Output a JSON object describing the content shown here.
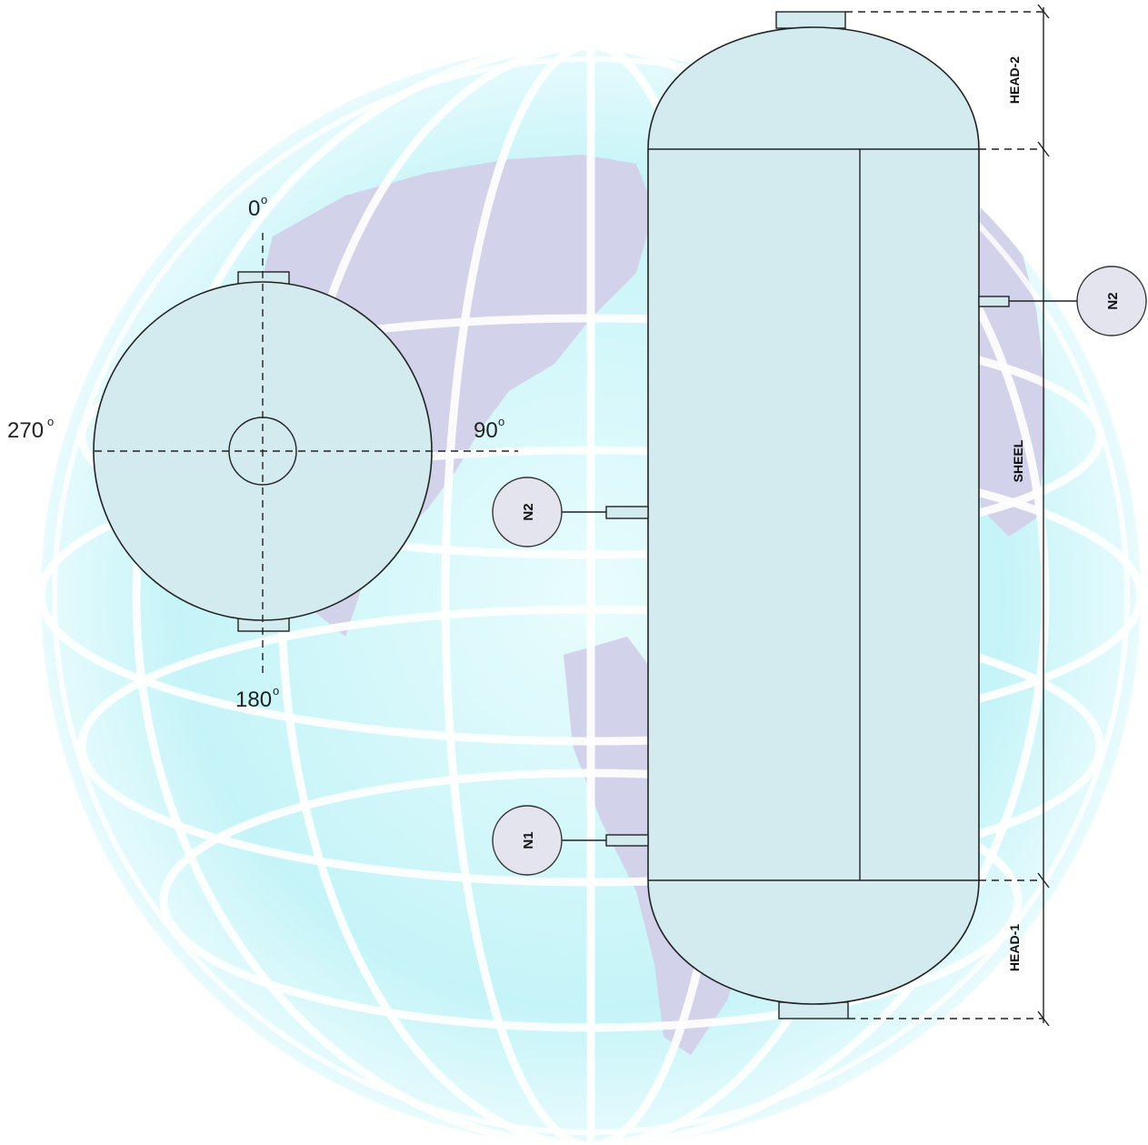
{
  "plan_view": {
    "angle_top": "0",
    "angle_right": "90",
    "angle_bottom": "180",
    "angle_left": "270",
    "degree_symbol": "o"
  },
  "nozzles": [
    {
      "id": "n2-left",
      "label": "N2"
    },
    {
      "id": "n1-left",
      "label": "N1"
    },
    {
      "id": "n2-right",
      "label": "N2"
    }
  ],
  "dimensions": {
    "head_top": "HEAD-2",
    "shell": "SHEEL",
    "head_bottom": "HEAD-1"
  },
  "colors": {
    "vessel_fill": "#d3ebef",
    "globe_ocean": "#c8f3f7",
    "globe_land": "#d2d2ea",
    "nozzle_bubble": "#e4e4ee"
  }
}
